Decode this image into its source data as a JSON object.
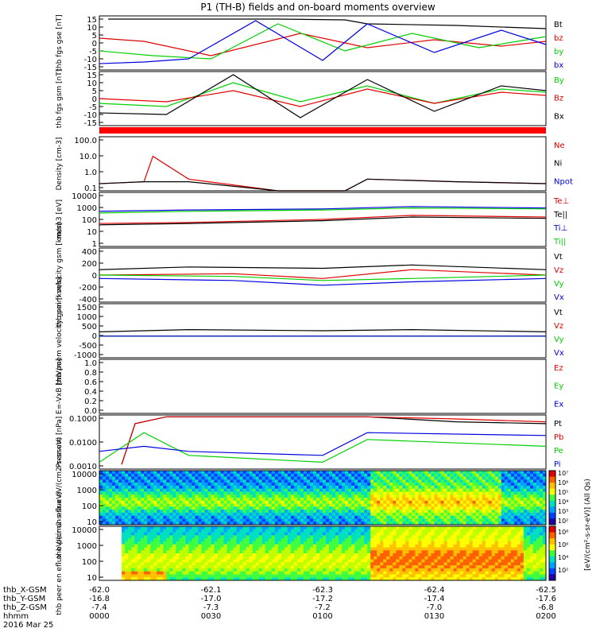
{
  "title": "P1 (TH-B) fields and on-board moments overview",
  "bottom": {
    "row_labels": [
      "thb_X-GSM",
      "thb_Y-GSM",
      "thb_Z-GSM",
      "hhmm",
      "2016 Mar 25"
    ],
    "ticks": [
      {
        "x": "-62.0",
        "y": "-16.8",
        "z": "-7.4",
        "t": "0000"
      },
      {
        "x": "-62.1",
        "y": "-17.0",
        "z": "-7.3",
        "t": "0030"
      },
      {
        "x": "-62.3",
        "y": "-17.2",
        "z": "-7.2",
        "t": "0100"
      },
      {
        "x": "-62.4",
        "y": "-17.4",
        "z": "-7.0",
        "t": "0130"
      },
      {
        "x": "-62.5",
        "y": "-17.6",
        "z": "-6.8",
        "t": "0200"
      }
    ]
  },
  "colors": {
    "black": "#000000",
    "red": "#e00000",
    "green": "#00d000",
    "blue": "#0000e0",
    "bar": "#ff0000"
  },
  "chart_data": [
    {
      "type": "line",
      "ylabel": "thb fgs gse [nT]",
      "yticks": [
        "15",
        "10",
        "5",
        "0",
        "-5",
        "-10",
        "-15"
      ],
      "ylim": [
        -17,
        17
      ],
      "series": [
        {
          "name": "Bt",
          "color": "#000000",
          "x": [
            0.02,
            0.12,
            0.4,
            0.55,
            0.6,
            0.8,
            1.0
          ],
          "values": [
            15,
            15,
            15,
            14.5,
            12,
            11,
            9
          ]
        },
        {
          "name": "bz",
          "color": "#e00000",
          "x": [
            0.0,
            0.1,
            0.25,
            0.45,
            0.6,
            0.75,
            0.9,
            1.0
          ],
          "values": [
            3,
            1,
            -8,
            6,
            -3,
            2,
            -2,
            1
          ]
        },
        {
          "name": "by",
          "color": "#00d000",
          "x": [
            0.0,
            0.12,
            0.25,
            0.4,
            0.55,
            0.7,
            0.85,
            1.0
          ],
          "values": [
            -5,
            -8,
            -10,
            12,
            -5,
            6,
            -3,
            4
          ]
        },
        {
          "name": "bx",
          "color": "#0000e0",
          "x": [
            0.0,
            0.1,
            0.2,
            0.35,
            0.5,
            0.6,
            0.75,
            0.9,
            1.0
          ],
          "values": [
            -13,
            -12,
            -10,
            14,
            -11,
            12,
            -6,
            8,
            -1
          ]
        }
      ]
    },
    {
      "type": "line",
      "ylabel": "thb fgs gsm [nT]",
      "yticks": [
        "15",
        "10",
        "5",
        "0",
        "-5",
        "-10",
        "-15"
      ],
      "ylim": [
        -17,
        17
      ],
      "series": [
        {
          "name": "By",
          "color": "#00d000",
          "x": [
            0.0,
            0.15,
            0.3,
            0.45,
            0.6,
            0.75,
            0.9,
            1.0
          ],
          "values": [
            -3,
            -5,
            10,
            -2,
            8,
            -3,
            6,
            4
          ]
        },
        {
          "name": "Bz",
          "color": "#e00000",
          "x": [
            0.0,
            0.15,
            0.3,
            0.45,
            0.6,
            0.75,
            0.9,
            1.0
          ],
          "values": [
            0,
            -2,
            5,
            -5,
            6,
            -3,
            4,
            2
          ]
        },
        {
          "name": "Bx",
          "color": "#000000",
          "x": [
            0.0,
            0.15,
            0.3,
            0.45,
            0.6,
            0.75,
            0.9,
            1.0
          ],
          "values": [
            -9,
            -10,
            15,
            -12,
            12,
            -8,
            8,
            5
          ]
        }
      ]
    },
    {
      "type": "heatmap",
      "ylabel": "",
      "yticks": []
    },
    {
      "type": "line",
      "ylabel": "Density [cm-3]",
      "yticks": [
        "100.0",
        "10.0",
        "1.0",
        "0.1"
      ],
      "log": true,
      "ylim": [
        0.05,
        200
      ],
      "series": [
        {
          "name": "Ne",
          "color": "#e00000",
          "x": [
            0,
            0.1,
            0.12,
            0.2,
            0.4,
            0.55,
            0.6,
            0.8,
            1.0
          ],
          "values": [
            0.15,
            0.2,
            10,
            0.3,
            0.03,
            0.05,
            0.3,
            0.2,
            0.15
          ]
        },
        {
          "name": "Ni",
          "color": "#000000",
          "x": [
            0,
            0.1,
            0.2,
            0.4,
            0.55,
            0.6,
            0.8,
            1.0
          ],
          "values": [
            0.15,
            0.2,
            0.2,
            0.04,
            0.05,
            0.3,
            0.2,
            0.15
          ]
        },
        {
          "name": "Npot",
          "color": "#0000e0",
          "x": [
            0.12
          ],
          "values": [
            150
          ]
        }
      ]
    },
    {
      "type": "line",
      "ylabel": "mom3 [eV]",
      "yticks": [
        "10000",
        "1000",
        "100",
        "10",
        "1"
      ],
      "log": true,
      "ylim": [
        1,
        10000
      ],
      "series": [
        {
          "name": "Te⊥",
          "color": "#e00000",
          "x": [
            0,
            0.2,
            0.5,
            0.7,
            1.0
          ],
          "values": [
            50,
            60,
            100,
            200,
            150
          ]
        },
        {
          "name": "Te||",
          "color": "#000000",
          "x": [
            0,
            0.2,
            0.5,
            0.7,
            1.0
          ],
          "values": [
            40,
            50,
            80,
            150,
            120
          ]
        },
        {
          "name": "Ti⊥",
          "color": "#0000e0",
          "x": [
            0,
            0.2,
            0.5,
            0.7,
            1.0
          ],
          "values": [
            400,
            500,
            600,
            900,
            700
          ]
        },
        {
          "name": "Ti||",
          "color": "#00d000",
          "x": [
            0,
            0.2,
            0.5,
            0.7,
            1.0
          ],
          "values": [
            300,
            400,
            500,
            700,
            600
          ]
        }
      ]
    },
    {
      "type": "line",
      "ylabel": "thb peim velocity gsm [km/s]",
      "yticks": [
        "400",
        "200",
        "0",
        "-200",
        "-400"
      ],
      "ylim": [
        -400,
        400
      ],
      "series": [
        {
          "name": "Vt",
          "color": "#000000",
          "x": [
            0,
            0.2,
            0.5,
            0.7,
            1.0
          ],
          "values": [
            80,
            120,
            100,
            150,
            80
          ]
        },
        {
          "name": "Vz",
          "color": "#e00000",
          "x": [
            0,
            0.3,
            0.5,
            0.7,
            1.0
          ],
          "values": [
            0,
            20,
            -50,
            80,
            0
          ]
        },
        {
          "name": "Vy",
          "color": "#00d000",
          "x": [
            0,
            0.3,
            0.5,
            0.7,
            1.0
          ],
          "values": [
            0,
            -20,
            -80,
            -50,
            0
          ]
        },
        {
          "name": "Vx",
          "color": "#0000e0",
          "x": [
            0,
            0.3,
            0.5,
            0.7,
            1.0
          ],
          "values": [
            -50,
            -80,
            -150,
            -100,
            -50
          ]
        }
      ]
    },
    {
      "type": "line",
      "ylabel": "thb peem velocity gsm [km/s]",
      "yticks": [
        "1500",
        "1000",
        "500",
        "0",
        "-500",
        "-1000"
      ],
      "ylim": [
        -1000,
        1500
      ],
      "series": [
        {
          "name": "Vt",
          "color": "#000000",
          "x": [
            0,
            0.2,
            0.5,
            0.7,
            1.0
          ],
          "values": [
            200,
            300,
            250,
            300,
            200
          ]
        },
        {
          "name": "Vz",
          "color": "#e00000",
          "x": [
            0,
            0.5,
            1.0
          ],
          "values": [
            0,
            0,
            0
          ]
        },
        {
          "name": "Vy",
          "color": "#00d000",
          "x": [
            0,
            0.5,
            1.0
          ],
          "values": [
            0,
            0,
            0
          ]
        },
        {
          "name": "Vx",
          "color": "#0000e0",
          "x": [
            0,
            0.5,
            1.0
          ],
          "values": [
            0,
            0,
            0
          ]
        }
      ]
    },
    {
      "type": "line",
      "ylabel": "E=-VxB [mV/m]",
      "yticks": [
        "1.0",
        "0.8",
        "0.6",
        "0.4",
        "0.2",
        "0.0"
      ],
      "ylim": [
        0,
        1
      ],
      "series": [
        {
          "name": "Ez",
          "color": "#e00000",
          "x": [],
          "values": []
        },
        {
          "name": "Ey",
          "color": "#00d000",
          "x": [],
          "values": []
        },
        {
          "name": "Ex",
          "color": "#0000e0",
          "x": [],
          "values": []
        }
      ]
    },
    {
      "type": "line",
      "ylabel": "Pressure [nPa]",
      "yticks": [
        "0.1000",
        "0.0100",
        "0.0010"
      ],
      "log": true,
      "ylim": [
        0.0005,
        0.12
      ],
      "series": [
        {
          "name": "Pt",
          "color": "#000000",
          "x": [
            0.05,
            0.08,
            0.15,
            0.6,
            0.8,
            1.0
          ],
          "values": [
            0.0008,
            0.05,
            0.1,
            0.1,
            0.06,
            0.05
          ]
        },
        {
          "name": "Pb",
          "color": "#e00000",
          "x": [
            0.05,
            0.08,
            0.15,
            0.6,
            0.8,
            1.0
          ],
          "values": [
            0.0008,
            0.05,
            0.1,
            0.1,
            0.08,
            0.06
          ]
        },
        {
          "name": "Pe",
          "color": "#00d000",
          "x": [
            0,
            0.1,
            0.2,
            0.5,
            0.6,
            1.0
          ],
          "values": [
            0.001,
            0.02,
            0.002,
            0.001,
            0.01,
            0.005
          ]
        },
        {
          "name": "Pi",
          "color": "#0000e0",
          "x": [
            0,
            0.1,
            0.2,
            0.5,
            0.6,
            1.0
          ],
          "values": [
            0.003,
            0.005,
            0.003,
            0.002,
            0.02,
            0.015
          ]
        }
      ]
    },
    {
      "type": "heatmap",
      "ylabel": "thb peir en eflux eV/(cm2-s-sr-eV)",
      "yticks": [
        "10000",
        "1000",
        "100",
        "10"
      ]
    },
    {
      "type": "heatmap",
      "ylabel": "thb peer en eflux eV/(cm2-s-sr-eV)",
      "yticks": [
        "10000",
        "1000",
        "100",
        "10"
      ]
    }
  ],
  "colorbar": {
    "ticks": [
      "10⁷",
      "10⁶",
      "10⁵",
      "10⁴",
      "10³",
      "10²",
      "10⁸",
      "10⁶",
      "10⁴",
      "10²"
    ],
    "label": "[eV/(cm²-s-sr-eV)] (All Qs)"
  }
}
